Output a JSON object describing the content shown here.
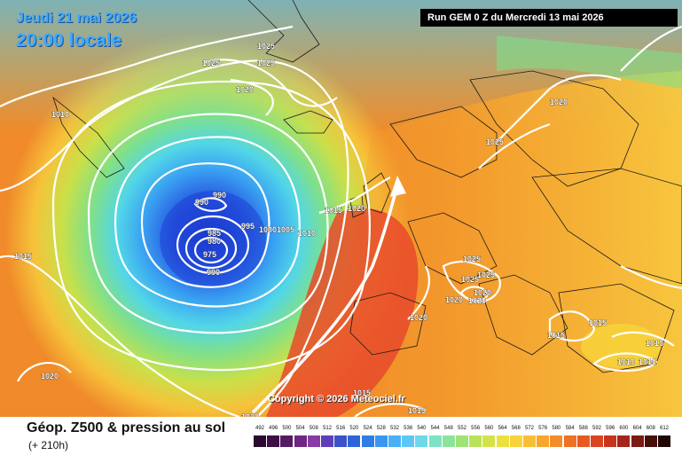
{
  "header": {
    "date": "Jeudi 21 mai 2026",
    "local_time": "20:00 locale",
    "run": "Run GEM 0 Z du Mercredi 13 mai 2026"
  },
  "copyright": "Copyright © 2026 Meteociel.fr",
  "footer": {
    "title": "Géop. Z500 & pression au sol",
    "subtitle": "(+ 210h)"
  },
  "legend": {
    "values": [
      "492",
      "496",
      "500",
      "504",
      "508",
      "512",
      "516",
      "520",
      "524",
      "528",
      "532",
      "536",
      "540",
      "544",
      "548",
      "552",
      "556",
      "560",
      "564",
      "568",
      "572",
      "576",
      "580",
      "584",
      "588",
      "592",
      "596",
      "600",
      "604",
      "608",
      "612"
    ],
    "colors": [
      "#2a0a2e",
      "#3d0f45",
      "#561a63",
      "#6e2682",
      "#8a3aa5",
      "#5e3fb8",
      "#3b52c9",
      "#2f63d8",
      "#2f7ee6",
      "#3a97f0",
      "#4ab0f6",
      "#5ec6f6",
      "#6ed8e6",
      "#7fe2c4",
      "#8be49a",
      "#9fe275",
      "#b9e25a",
      "#d4e24a",
      "#ebe040",
      "#f8d43a",
      "#f9bf34",
      "#f8a62e",
      "#f48c2a",
      "#ee7126",
      "#e65a22",
      "#da4420",
      "#c8341e",
      "#a4261a",
      "#7c1a14",
      "#4a0e0a",
      "#200604"
    ]
  },
  "isobar_labels": [
    "1025",
    "1025",
    "1025",
    "1020",
    "1010",
    "990",
    "990",
    "985",
    "980",
    "975",
    "990",
    "995",
    "1000",
    "1005",
    "1010",
    "1015",
    "1020",
    "1020",
    "1015",
    "1025",
    "1025",
    "1025",
    "1020",
    "1020",
    "1020",
    "1020",
    "1015",
    "1015",
    "1010",
    "1010",
    "1010",
    "1020",
    "1015",
    "1020",
    "1015",
    "1025"
  ],
  "map": {
    "model": "GEM",
    "low_pressure_center": "975",
    "colors": {
      "deep_low": "#1e3fd6",
      "low": "#3aa6f5",
      "mid": "#7fe08a",
      "high": "#f4a02a",
      "very_high": "#e5382a",
      "isobar": "#ffffff"
    }
  }
}
